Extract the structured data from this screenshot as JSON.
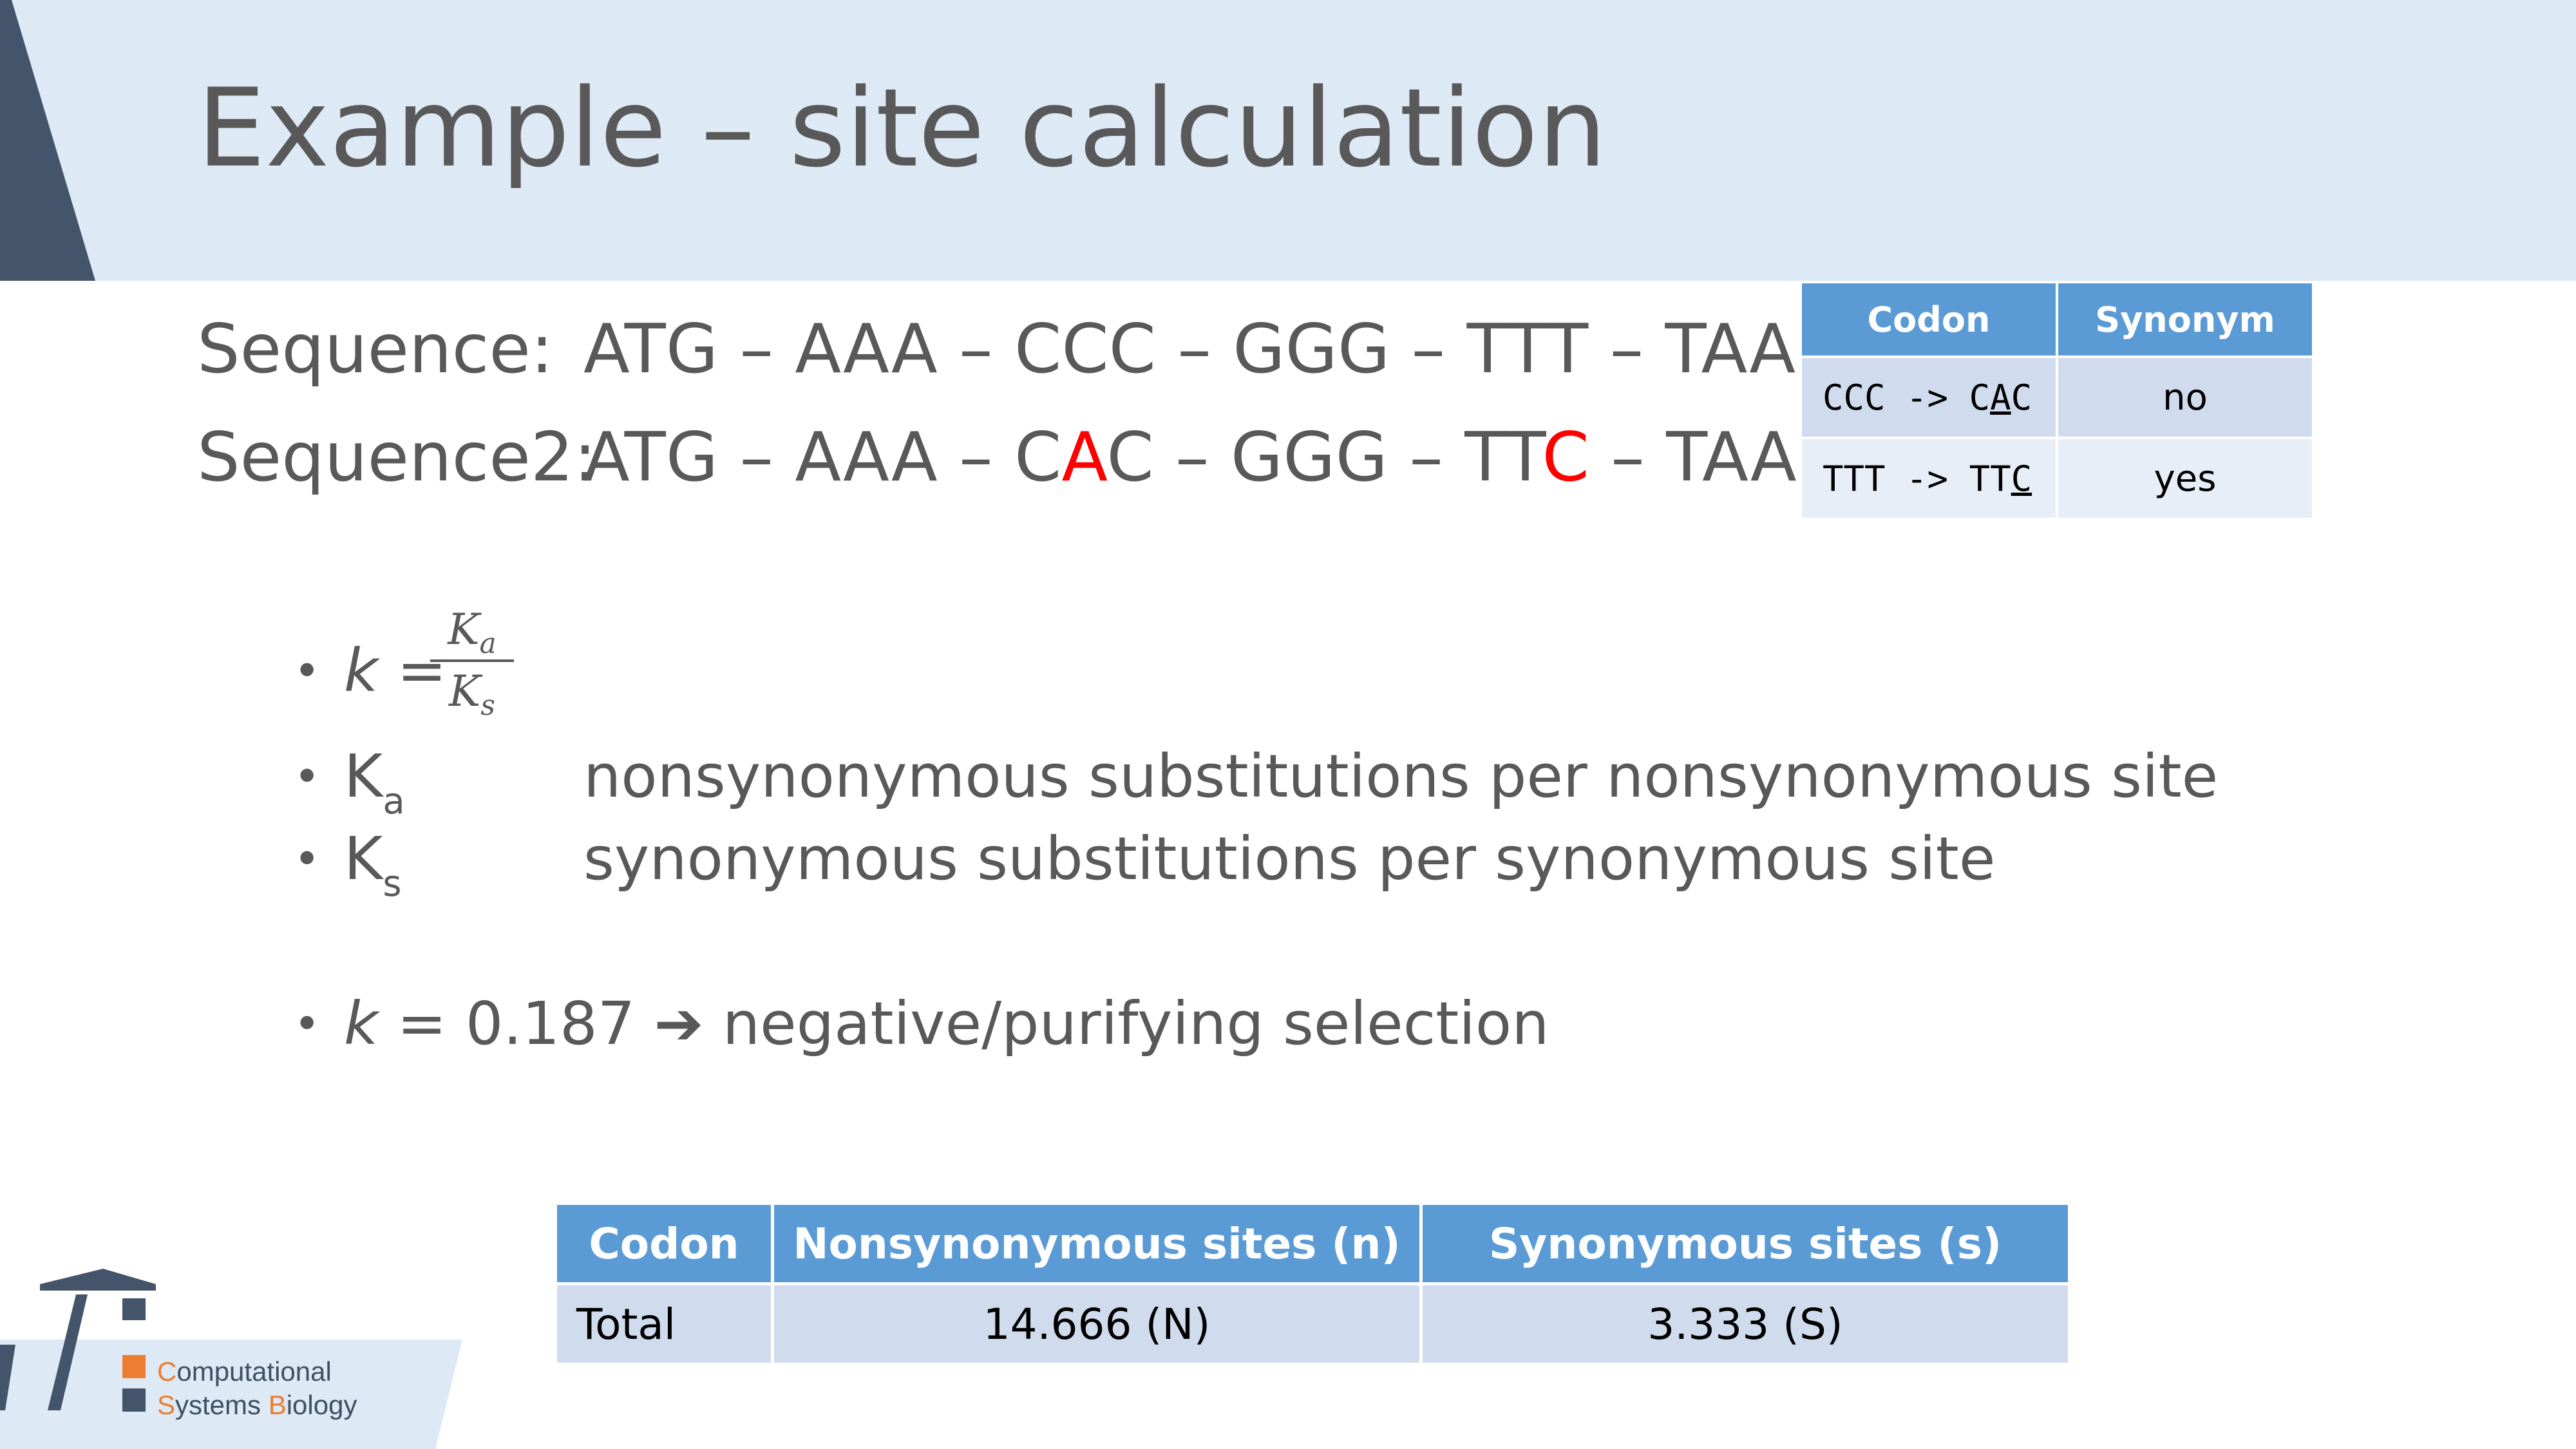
{
  "slide": {
    "title": "Example – site calculation"
  },
  "sequences": [
    {
      "label": "Sequence:",
      "parts": [
        {
          "text": "ATG – AAA – CCC – GGG – TTT – TAA",
          "red": false
        }
      ]
    },
    {
      "label": "Sequence2:",
      "parts": [
        {
          "text": "ATG – AAA – C",
          "red": false
        },
        {
          "text": "A",
          "red": true
        },
        {
          "text": "C – GGG – TT",
          "red": false
        },
        {
          "text": "C",
          "red": true
        },
        {
          "text": " – TAA",
          "red": false
        }
      ]
    }
  ],
  "codon_table": {
    "headers": {
      "codon": "Codon",
      "synonym": "Synonym"
    },
    "rows": [
      {
        "codon_prefix": "CCC -> C",
        "codon_mark": "A",
        "codon_suffix": "C",
        "synonym": "no"
      },
      {
        "codon_prefix": "TTT -> TT",
        "codon_mark": "C",
        "codon_suffix": "",
        "synonym": "yes"
      }
    ]
  },
  "bullets": {
    "formula": {
      "var": "k",
      "equals": " =",
      "num_main": "K",
      "num_sub": "a",
      "den_main": "K",
      "den_sub": "s"
    },
    "ka": {
      "main": "K",
      "sub": "a",
      "desc": "nonsynonymous substitutions per nonsynonymous site"
    },
    "ks": {
      "main": "K",
      "sub": "s",
      "desc": "synonymous substitutions per synonymous site"
    },
    "result": {
      "var": "k",
      "value": " = 0.187 ",
      "arrow": "➔",
      "desc": " negative/purifying selection"
    },
    "bullet_char": "•"
  },
  "sites_table": {
    "headers": {
      "codon": "Codon",
      "nonsyn": "Nonsynonymous sites (n)",
      "syn": "Synonymous sites (s)"
    },
    "row": {
      "codon": "Total",
      "nonsyn": "14.666 (N)",
      "syn": "3.333 (S)"
    }
  },
  "logo": {
    "line1_accent": "C",
    "line1_rest": "omputational",
    "line2_accent1": "S",
    "line2_mid": "ystems ",
    "line2_accent2": "B",
    "line2_rest": "iology",
    "colors": {
      "accent": "#ed7d31",
      "dark": "#3e4f63"
    }
  },
  "colors": {
    "header_band": "#dde9f5",
    "table_header": "#5b9bd5",
    "highlight": "#ff0000"
  }
}
